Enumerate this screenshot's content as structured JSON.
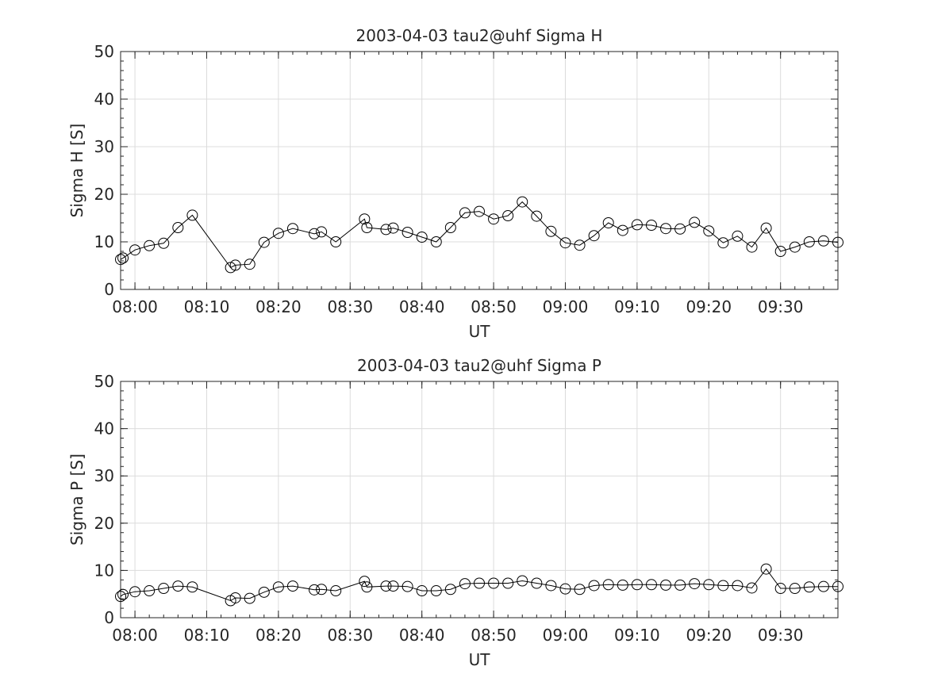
{
  "chart_data": [
    {
      "type": "line",
      "title": "2003-04-03  tau2@uhf Sigma H",
      "xlabel": "UT",
      "ylabel": "Sigma H [S]",
      "xlim": [
        "07:58",
        "09:38"
      ],
      "ylim": [
        0,
        50
      ],
      "xticks": [
        "08:00",
        "08:10",
        "08:20",
        "08:30",
        "08:40",
        "08:50",
        "09:00",
        "09:10",
        "09:20",
        "09:30"
      ],
      "yticks": [
        "0",
        "10",
        "20",
        "30",
        "40",
        "50"
      ],
      "grid": true,
      "marker": "circle",
      "color": "#000000",
      "x": [
        "07:58",
        "07:58:20",
        "08:00",
        "08:02",
        "08:04",
        "08:06",
        "08:08",
        "08:13:20",
        "08:14",
        "08:16",
        "08:18",
        "08:20",
        "08:22",
        "08:25",
        "08:26",
        "08:28",
        "08:32",
        "08:32:20",
        "08:35",
        "08:36",
        "08:38",
        "08:40",
        "08:42",
        "08:44",
        "08:46",
        "08:48",
        "08:50",
        "08:52",
        "08:54",
        "08:56",
        "08:58",
        "09:00",
        "09:02",
        "09:04",
        "09:06",
        "09:08",
        "09:10",
        "09:12",
        "09:14",
        "09:16",
        "09:18",
        "09:20",
        "09:22",
        "09:24",
        "09:26",
        "09:28",
        "09:30",
        "09:32",
        "09:34",
        "09:36",
        "09:38"
      ],
      "values": [
        6.3,
        6.6,
        8.3,
        9.2,
        9.7,
        13.0,
        15.6,
        4.6,
        5.1,
        5.3,
        9.9,
        11.8,
        12.8,
        11.7,
        12.1,
        10.0,
        14.8,
        13.0,
        12.6,
        12.9,
        12.0,
        11.0,
        10.0,
        13.0,
        16.1,
        16.4,
        14.8,
        15.5,
        18.4,
        15.4,
        12.2,
        9.8,
        9.3,
        11.3,
        14.0,
        12.4,
        13.6,
        13.5,
        12.8,
        12.7,
        14.1,
        12.3,
        9.8,
        11.2,
        8.9,
        12.9,
        8.0,
        8.9,
        10.0,
        10.2,
        9.9
      ]
    },
    {
      "type": "line",
      "title": "2003-04-03  tau2@uhf Sigma P",
      "xlabel": "UT",
      "ylabel": "Sigma P [S]",
      "xlim": [
        "07:58",
        "09:38"
      ],
      "ylim": [
        0,
        50
      ],
      "xticks": [
        "08:00",
        "08:10",
        "08:20",
        "08:30",
        "08:40",
        "08:50",
        "09:00",
        "09:10",
        "09:20",
        "09:30"
      ],
      "yticks": [
        "0",
        "10",
        "20",
        "30",
        "40",
        "50"
      ],
      "grid": true,
      "marker": "circle",
      "color": "#000000",
      "x": [
        "07:58",
        "07:58:20",
        "08:00",
        "08:02",
        "08:04",
        "08:06",
        "08:08",
        "08:13:20",
        "08:14",
        "08:16",
        "08:18",
        "08:20",
        "08:22",
        "08:25",
        "08:26",
        "08:28",
        "08:32",
        "08:32:20",
        "08:35",
        "08:36",
        "08:38",
        "08:40",
        "08:42",
        "08:44",
        "08:46",
        "08:48",
        "08:50",
        "08:52",
        "08:54",
        "08:56",
        "08:58",
        "09:00",
        "09:02",
        "09:04",
        "09:06",
        "09:08",
        "09:10",
        "09:12",
        "09:14",
        "09:16",
        "09:18",
        "09:20",
        "09:22",
        "09:24",
        "09:26",
        "09:28",
        "09:30",
        "09:32",
        "09:34",
        "09:36",
        "09:38"
      ],
      "values": [
        4.5,
        4.9,
        5.5,
        5.7,
        6.2,
        6.7,
        6.5,
        3.6,
        4.2,
        4.1,
        5.4,
        6.5,
        6.7,
        5.9,
        6.0,
        5.7,
        7.7,
        6.5,
        6.7,
        6.7,
        6.6,
        5.7,
        5.7,
        6.0,
        7.2,
        7.3,
        7.3,
        7.3,
        7.8,
        7.3,
        6.8,
        6.1,
        6.0,
        6.8,
        7.0,
        6.9,
        7.0,
        7.0,
        6.9,
        6.9,
        7.2,
        7.0,
        6.8,
        6.8,
        6.3,
        10.3,
        6.2,
        6.2,
        6.5,
        6.6,
        6.6
      ]
    }
  ]
}
